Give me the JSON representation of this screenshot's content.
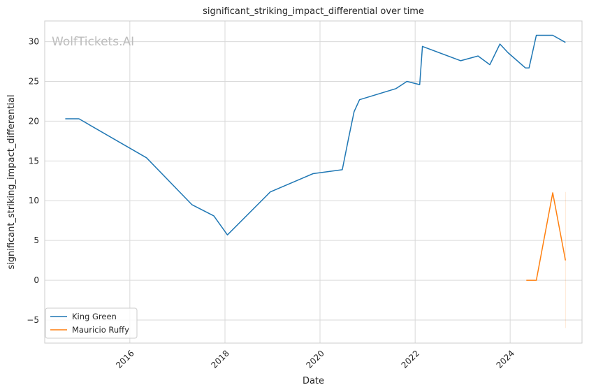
{
  "chart_data": {
    "type": "line",
    "title": "significant_striking_impact_differential over time",
    "xlabel": "Date",
    "ylabel": "significant_striking_impact_differential",
    "watermark": "WolfTickets.AI",
    "xlim": [
      "2014-03-18",
      "2025-07-06"
    ],
    "ylim": [
      -7.9,
      32.6
    ],
    "x_ticks": [
      "2016-01-01",
      "2018-01-01",
      "2020-01-01",
      "2022-01-01",
      "2024-01-01"
    ],
    "x_tick_labels": [
      "2016",
      "2018",
      "2020",
      "2022",
      "2024"
    ],
    "y_ticks": [
      -5,
      0,
      5,
      10,
      15,
      20,
      25,
      30
    ],
    "y_tick_labels": [
      "−5",
      "0",
      "5",
      "10",
      "15",
      "20",
      "25",
      "30"
    ],
    "grid": true,
    "legend_position": "lower-left",
    "series": [
      {
        "name": "King Green",
        "color": "#1f77b4",
        "points": [
          [
            "2014-08-23",
            20.3
          ],
          [
            "2014-12-06",
            20.3
          ],
          [
            "2016-05-08",
            15.4
          ],
          [
            "2017-04-22",
            9.5
          ],
          [
            "2017-10-07",
            8.1
          ],
          [
            "2018-01-20",
            5.7
          ],
          [
            "2018-12-15",
            11.1
          ],
          [
            "2019-11-09",
            13.4
          ],
          [
            "2020-06-20",
            13.9
          ],
          [
            "2020-08-08",
            17.9
          ],
          [
            "2020-09-19",
            21.2
          ],
          [
            "2020-10-31",
            22.7
          ],
          [
            "2021-08-07",
            24.1
          ],
          [
            "2021-10-30",
            25.0
          ],
          [
            "2022-02-05",
            24.6
          ],
          [
            "2022-02-26",
            29.4
          ],
          [
            "2022-12-17",
            27.6
          ],
          [
            "2023-04-29",
            28.2
          ],
          [
            "2023-07-29",
            27.1
          ],
          [
            "2023-10-14",
            29.7
          ],
          [
            "2023-12-16",
            28.6
          ],
          [
            "2024-04-27",
            26.7
          ],
          [
            "2024-05-25",
            26.7
          ],
          [
            "2024-07-20",
            30.8
          ],
          [
            "2024-11-23",
            30.8
          ],
          [
            "2025-03-01",
            29.9
          ]
        ]
      },
      {
        "name": "Mauricio Ruffy",
        "color": "#ff7f0e",
        "points": [
          [
            "2024-05-04",
            0.0
          ],
          [
            "2024-07-20",
            0.0
          ],
          [
            "2024-11-23",
            11.0
          ],
          [
            "2025-03-01",
            2.5
          ]
        ],
        "band": {
          "date": "2025-03-01",
          "low": -6.0,
          "high": 11.1
        }
      }
    ]
  }
}
